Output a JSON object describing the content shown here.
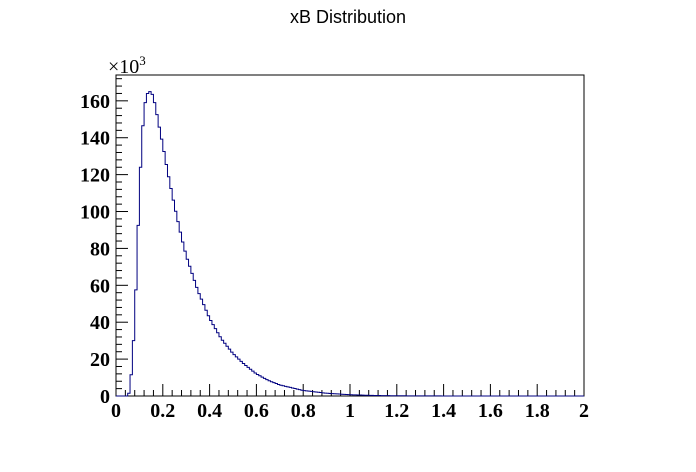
{
  "chart_data": {
    "type": "histogram",
    "title": "xB Distribution",
    "xlabel": "",
    "ylabel": "",
    "y_multiplier": "×10",
    "y_multiplier_exp": "3",
    "xlim": [
      0,
      2
    ],
    "ylim": [
      0,
      174
    ],
    "grid": false,
    "x_ticks": [
      "0",
      "0.2",
      "0.4",
      "0.6",
      "0.8",
      "1",
      "1.2",
      "1.4",
      "1.6",
      "1.8",
      "2"
    ],
    "y_ticks": [
      "0",
      "20",
      "40",
      "60",
      "80",
      "100",
      "120",
      "140",
      "160"
    ],
    "line_color": "#000080",
    "bin_width": 0.01,
    "profile": [
      [
        0.0,
        0
      ],
      [
        0.05,
        0
      ],
      [
        0.06,
        3
      ],
      [
        0.07,
        20
      ],
      [
        0.08,
        40
      ],
      [
        0.09,
        75
      ],
      [
        0.1,
        110
      ],
      [
        0.11,
        138
      ],
      [
        0.12,
        155
      ],
      [
        0.13,
        163
      ],
      [
        0.14,
        165
      ],
      [
        0.15,
        165
      ],
      [
        0.16,
        162
      ],
      [
        0.17,
        156
      ],
      [
        0.18,
        149
      ],
      [
        0.2,
        136
      ],
      [
        0.22,
        122
      ],
      [
        0.25,
        103
      ],
      [
        0.28,
        86
      ],
      [
        0.3,
        76
      ],
      [
        0.35,
        57
      ],
      [
        0.4,
        42
      ],
      [
        0.45,
        31
      ],
      [
        0.5,
        23
      ],
      [
        0.55,
        17
      ],
      [
        0.6,
        12
      ],
      [
        0.65,
        8.5
      ],
      [
        0.7,
        6
      ],
      [
        0.8,
        3
      ],
      [
        0.9,
        1.5
      ],
      [
        1.0,
        0.7
      ],
      [
        1.1,
        0.3
      ],
      [
        1.2,
        0.12
      ],
      [
        1.4,
        0.03
      ],
      [
        1.6,
        0
      ],
      [
        2.0,
        0
      ]
    ]
  }
}
